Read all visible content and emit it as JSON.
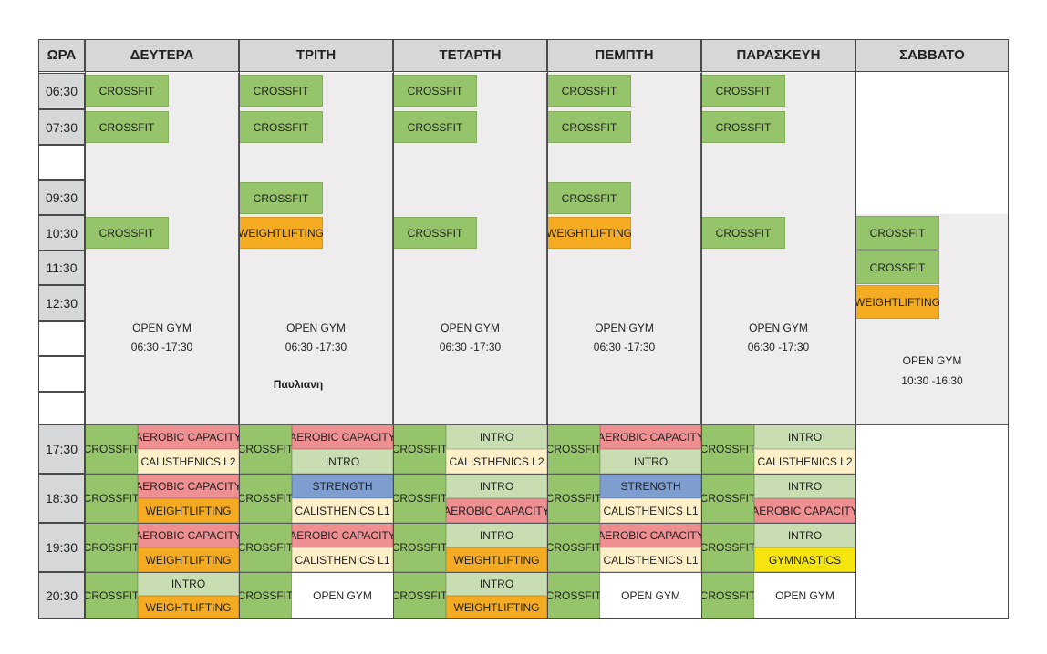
{
  "header": {
    "hour_label": "ΩΡΑ",
    "days": [
      "ΔΕΥΤΕΡΑ",
      "ΤΡΙΤΗ",
      "ΤΕΤΑΡΤΗ",
      "ΠΕΜΠΤΗ",
      "ΠΑΡΑΣΚΕΥΗ",
      "ΣΑΒΒΑΤΟ"
    ]
  },
  "morning_times": [
    "06:30",
    "07:30",
    "",
    "09:30",
    "10:30",
    "11:30",
    "12:30",
    "",
    "",
    ""
  ],
  "evening_times": [
    "17:30",
    "18:30",
    "19:30",
    "20:30"
  ],
  "morning_events": {
    "monday": [
      "CROSSFIT",
      "CROSSFIT",
      "CROSSFIT"
    ],
    "tuesday": [
      "CROSSFIT",
      "CROSSFIT",
      "CROSSFIT",
      "WEIGHTLIFTING"
    ],
    "wednesday": [
      "CROSSFIT",
      "CROSSFIT",
      "CROSSFIT"
    ],
    "thursday": [
      "CROSSFIT",
      "CROSSFIT",
      "CROSSFIT",
      "WEIGHTLIFTING"
    ],
    "friday": [
      "CROSSFIT",
      "CROSSFIT",
      "CROSSFIT"
    ],
    "saturday": [
      "CROSSFIT",
      "CROSSFIT",
      "WEIGHTLIFTING"
    ]
  },
  "open_gym": {
    "label": "OPEN GYM",
    "weekday_hours": "06:30 -17:30",
    "saturday_hours": "10:30 -16:30"
  },
  "note": "Παυλιανη",
  "evening": {
    "crossfit": "CROSSFIT",
    "monday": [
      [
        "AEROBIC CAPACITY",
        "CALISTHENICS L2"
      ],
      [
        "AEROBIC CAPACITY",
        "WEIGHTLIFTING"
      ],
      [
        "AEROBIC CAPACITY",
        "WEIGHTLIFTING"
      ],
      [
        "INTRO",
        "WEIGHTLIFTING"
      ]
    ],
    "tuesday": [
      [
        "AEROBIC CAPACITY",
        "INTRO"
      ],
      [
        "STRENGTH",
        "CALISTHENICS L1"
      ],
      [
        "AEROBIC CAPACITY",
        "CALISTHENICS L1"
      ],
      [
        "OPEN GYM"
      ]
    ],
    "wednesday": [
      [
        "INTRO",
        "CALISTHENICS L2"
      ],
      [
        "INTRO",
        "AEROBIC CAPACITY"
      ],
      [
        "INTRO",
        "WEIGHTLIFTING"
      ],
      [
        "INTRO",
        "WEIGHTLIFTING"
      ]
    ],
    "thursday": [
      [
        "AEROBIC CAPACITY",
        "INTRO"
      ],
      [
        "STRENGTH",
        "CALISTHENICS L1"
      ],
      [
        "AEROBIC CAPACITY",
        "CALISTHENICS L1"
      ],
      [
        "OPEN GYM"
      ]
    ],
    "friday": [
      [
        "INTRO",
        "CALISTHENICS L2"
      ],
      [
        "INTRO",
        "AEROBIC CAPACITY"
      ],
      [
        "INTRO",
        "GYMNASTICS"
      ],
      [
        "OPEN GYM"
      ]
    ]
  },
  "colors": {
    "crossfit": "#96c46a",
    "weightlifting": "#f5ab21",
    "aerobic_capacity": "#ee8f91",
    "calisthenics": "#fdf0c8",
    "intro": "#c8ddb2",
    "strength": "#7f9ed0",
    "gymnastics": "#f5e40d"
  }
}
